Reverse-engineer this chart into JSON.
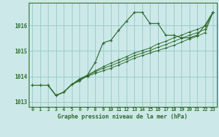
{
  "title": "Graphe pression niveau de la mer (hPa)",
  "bg_color": "#cce8e8",
  "grid_color": "#99cccc",
  "line_color": "#2d6b2d",
  "xlim": [
    -0.5,
    23.5
  ],
  "ylim": [
    1012.8,
    1016.9
  ],
  "yticks": [
    1013,
    1014,
    1015,
    1016
  ],
  "xticks": [
    0,
    1,
    2,
    3,
    4,
    5,
    6,
    7,
    8,
    9,
    10,
    11,
    12,
    13,
    14,
    15,
    16,
    17,
    18,
    19,
    20,
    21,
    22,
    23
  ],
  "series": [
    [
      1013.65,
      1013.65,
      1013.65,
      1013.25,
      1013.38,
      1013.68,
      1013.82,
      1014.05,
      1014.55,
      1015.32,
      1015.42,
      1015.82,
      1016.18,
      1016.52,
      1016.52,
      1016.08,
      1016.08,
      1015.62,
      1015.62,
      1015.52,
      1015.52,
      1015.62,
      1016.02,
      1016.52
    ],
    [
      1013.65,
      1013.65,
      1013.65,
      1013.25,
      1013.38,
      1013.68,
      1013.85,
      1014.0,
      1014.12,
      1014.22,
      1014.32,
      1014.45,
      1014.58,
      1014.72,
      1014.82,
      1014.92,
      1015.02,
      1015.12,
      1015.22,
      1015.35,
      1015.48,
      1015.58,
      1015.72,
      1016.52
    ],
    [
      1013.65,
      1013.65,
      1013.65,
      1013.25,
      1013.38,
      1013.68,
      1013.88,
      1014.02,
      1014.18,
      1014.32,
      1014.42,
      1014.55,
      1014.68,
      1014.82,
      1014.92,
      1015.02,
      1015.15,
      1015.25,
      1015.38,
      1015.5,
      1015.62,
      1015.72,
      1015.85,
      1016.52
    ],
    [
      1013.65,
      1013.65,
      1013.65,
      1013.25,
      1013.38,
      1013.68,
      1013.9,
      1014.05,
      1014.22,
      1014.38,
      1014.52,
      1014.65,
      1014.78,
      1014.92,
      1015.02,
      1015.12,
      1015.28,
      1015.38,
      1015.52,
      1015.62,
      1015.75,
      1015.85,
      1015.98,
      1016.52
    ]
  ]
}
